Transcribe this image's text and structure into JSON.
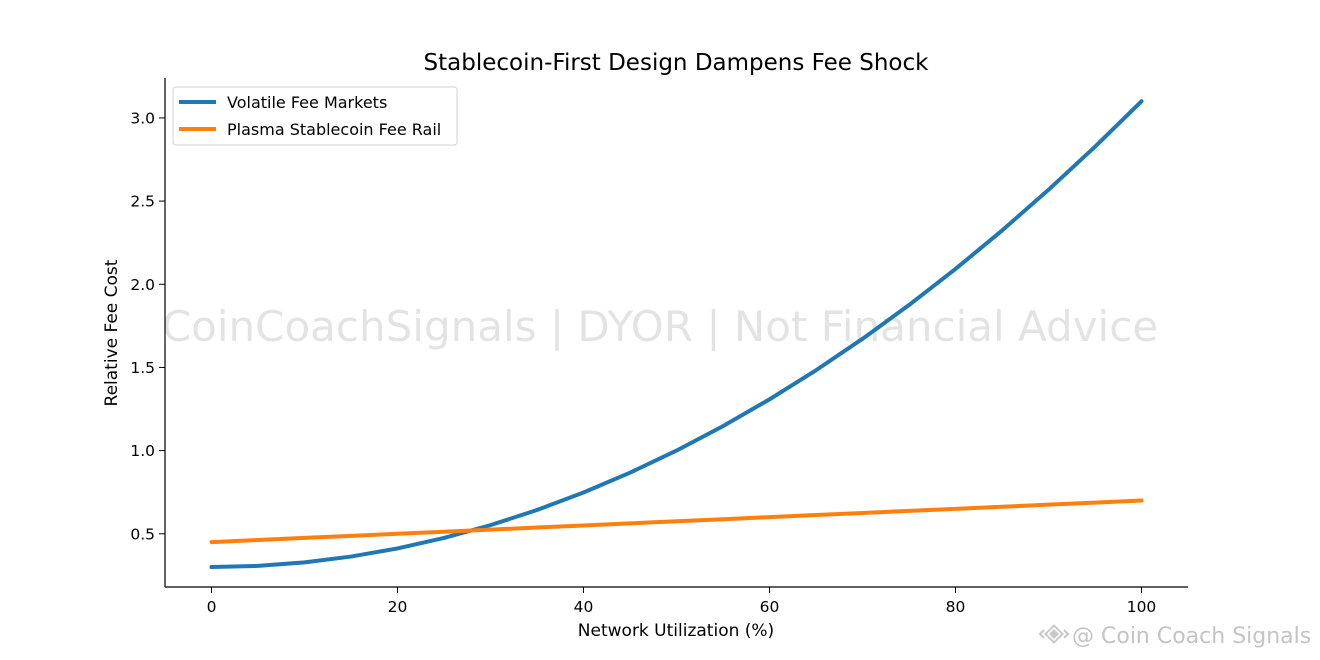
{
  "chart_data": {
    "type": "line",
    "title": "Stablecoin-First Design Dampens Fee Shock",
    "xlabel": "Network Utilization (%)",
    "ylabel": "Relative Fee Cost",
    "xlim": [
      -5,
      105
    ],
    "ylim": [
      0.18,
      3.24
    ],
    "x_ticks": [
      0,
      20,
      40,
      60,
      80,
      100
    ],
    "y_ticks": [
      0.5,
      1.0,
      1.5,
      2.0,
      2.5,
      3.0
    ],
    "grid": false,
    "legend_position": "top-left",
    "x": [
      0,
      5,
      10,
      15,
      20,
      25,
      30,
      35,
      40,
      45,
      50,
      55,
      60,
      65,
      70,
      75,
      80,
      85,
      90,
      95,
      100
    ],
    "series": [
      {
        "name": "Volatile Fee Markets",
        "color": "#1f77b4",
        "values": [
          0.3,
          0.307,
          0.328,
          0.363,
          0.412,
          0.475,
          0.552,
          0.643,
          0.748,
          0.867,
          1.0,
          1.147,
          1.308,
          1.483,
          1.672,
          1.875,
          2.092,
          2.323,
          2.568,
          2.827,
          3.1
        ]
      },
      {
        "name": "Plasma Stablecoin Fee Rail",
        "color": "#ff7f0e",
        "values": [
          0.45,
          0.4625,
          0.475,
          0.4875,
          0.5,
          0.5125,
          0.525,
          0.5375,
          0.55,
          0.5625,
          0.575,
          0.5875,
          0.6,
          0.6125,
          0.625,
          0.6375,
          0.65,
          0.6625,
          0.675,
          0.6875,
          0.7
        ]
      }
    ]
  },
  "watermark": "CoinCoachSignals | DYOR | Not Financial Advice",
  "credit": "@ Coin Coach Signals",
  "credit_icon": "binance-diamond-icon"
}
